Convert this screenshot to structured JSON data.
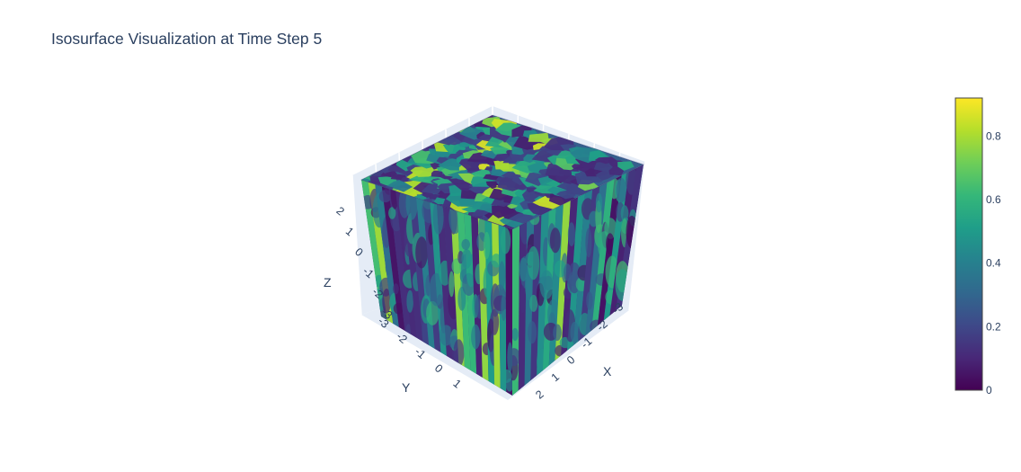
{
  "chart_data": {
    "type": "isosurface",
    "title": "Isosurface Visualization at Time Step 5",
    "colorscale": "Viridis",
    "colorscale_stops": [
      "#440154",
      "#482878",
      "#3e4989",
      "#31688e",
      "#26828e",
      "#1f9e89",
      "#35b779",
      "#6ece58",
      "#b5de2b",
      "#fde725"
    ],
    "value_range": [
      0,
      0.92
    ],
    "x_axis": {
      "title": "X",
      "ticks": [
        "-3",
        "-2",
        "-1",
        "0",
        "1",
        "2"
      ]
    },
    "y_axis": {
      "title": "Y",
      "ticks": [
        "-3",
        "-2",
        "-1",
        "0",
        "1"
      ]
    },
    "z_axis": {
      "title": "Z",
      "ticks": [
        "-3",
        "-2",
        "-1",
        "0",
        "1",
        "2"
      ]
    },
    "colorbar": {
      "ticks": [
        "0",
        "0.2",
        "0.4",
        "0.6",
        "0.8"
      ],
      "tick_values": [
        0,
        0.2,
        0.4,
        0.6,
        0.8
      ]
    },
    "scene_background": "#e5ecf6",
    "grid": true
  }
}
